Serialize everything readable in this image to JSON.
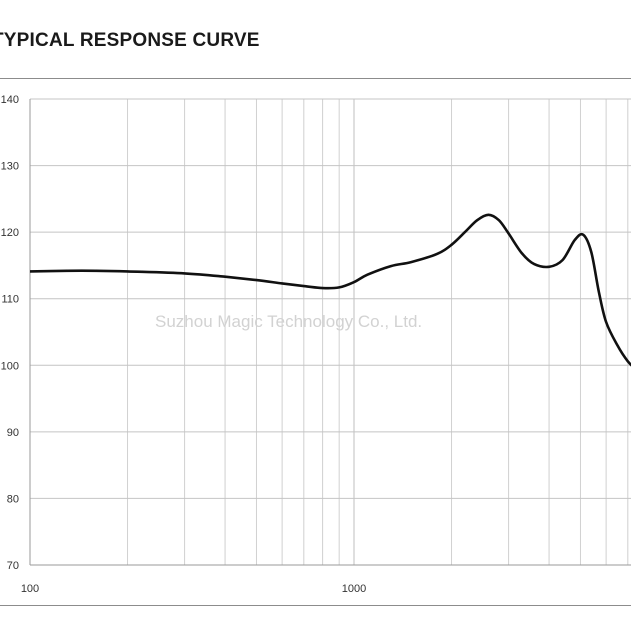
{
  "title": "TYPICAL RESPONSE CURVE",
  "watermark": "Suzhou Magic Technology Co., Ltd.",
  "chart_data": {
    "type": "line",
    "title": "TYPICAL RESPONSE CURVE",
    "xlabel": "",
    "ylabel": "",
    "x_scale": "log",
    "xlim": [
      100,
      8500
    ],
    "ylim": [
      70,
      140
    ],
    "x_ticks": [
      100,
      1000
    ],
    "x_tick_labels": [
      "100",
      "1000"
    ],
    "y_ticks": [
      70,
      80,
      90,
      100,
      110,
      120,
      130,
      140
    ],
    "y_tick_labels": [
      "70",
      "80",
      "90",
      "100",
      "110",
      "120",
      "130",
      "140"
    ],
    "grid": true,
    "series": [
      {
        "color": "#111111",
        "x": [
          100,
          130,
          160,
          200,
          300,
          400,
          500,
          600,
          700,
          800,
          900,
          1000,
          1100,
          1300,
          1500,
          1800,
          2000,
          2200,
          2400,
          2600,
          2800,
          3000,
          3300,
          3600,
          4000,
          4400,
          4800,
          5100,
          5400,
          5700,
          6000,
          6500,
          7000,
          7500,
          8000,
          8500
        ],
        "y": [
          114.1,
          114.2,
          114.2,
          114.1,
          113.8,
          113.3,
          112.8,
          112.3,
          111.9,
          111.6,
          111.7,
          112.5,
          113.6,
          114.9,
          115.5,
          116.7,
          118.1,
          120.0,
          121.8,
          122.6,
          121.8,
          119.8,
          116.8,
          115.2,
          114.8,
          115.8,
          118.8,
          119.6,
          117.0,
          111.0,
          106.5,
          103.0,
          100.6,
          99.2,
          98.3,
          97.5
        ]
      }
    ]
  }
}
